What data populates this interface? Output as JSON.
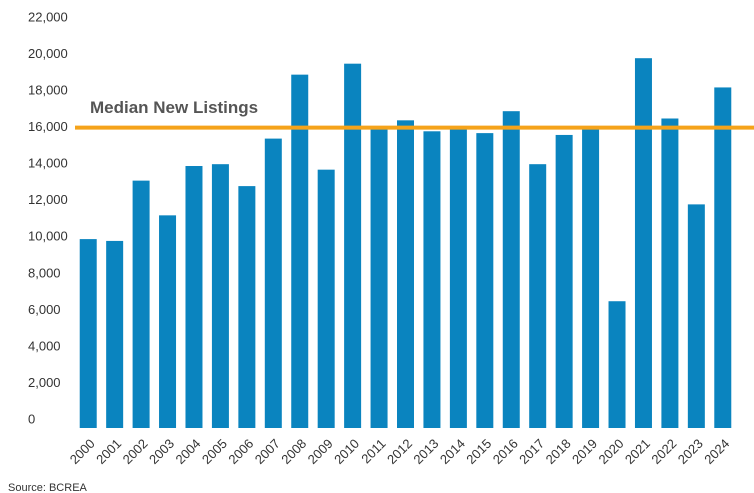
{
  "chart_data": {
    "type": "bar",
    "categories": [
      "2000",
      "2001",
      "2002",
      "2003",
      "2004",
      "2005",
      "2006",
      "2007",
      "2008",
      "2009",
      "2010",
      "2011",
      "2012",
      "2013",
      "2014",
      "2015",
      "2016",
      "2017",
      "2018",
      "2019",
      "2020",
      "2021",
      "2022",
      "2023",
      "2024"
    ],
    "values": [
      9900,
      9800,
      13100,
      11200,
      13900,
      14000,
      12800,
      15400,
      18900,
      13700,
      19500,
      15900,
      16400,
      15800,
      15900,
      15700,
      16900,
      14000,
      15600,
      15900,
      6500,
      19800,
      16500,
      11800,
      18200
    ],
    "color": "#0a84bf",
    "ylim": [
      0,
      22000
    ],
    "yticks": [
      0,
      {
        "value": 2000,
        "label": "2,000"
      },
      {
        "value": 4000,
        "label": "4,000"
      },
      {
        "value": 6000,
        "label": "6,000"
      },
      {
        "value": 8000,
        "label": "8,000"
      },
      {
        "value": 10000,
        "label": "10,000"
      },
      {
        "value": 12000,
        "label": "12,000"
      },
      {
        "value": 14000,
        "label": "14,000"
      },
      {
        "value": 16000,
        "label": "16,000"
      },
      {
        "value": 18000,
        "label": "18,000"
      },
      {
        "value": 20000,
        "label": "20,000"
      },
      {
        "value": 22000,
        "label": "22,000"
      }
    ],
    "grid": false,
    "reference_line": {
      "label": "Median New Listings",
      "value": 16000,
      "color": "#f5a31a"
    },
    "source": "Source: BCREA"
  }
}
